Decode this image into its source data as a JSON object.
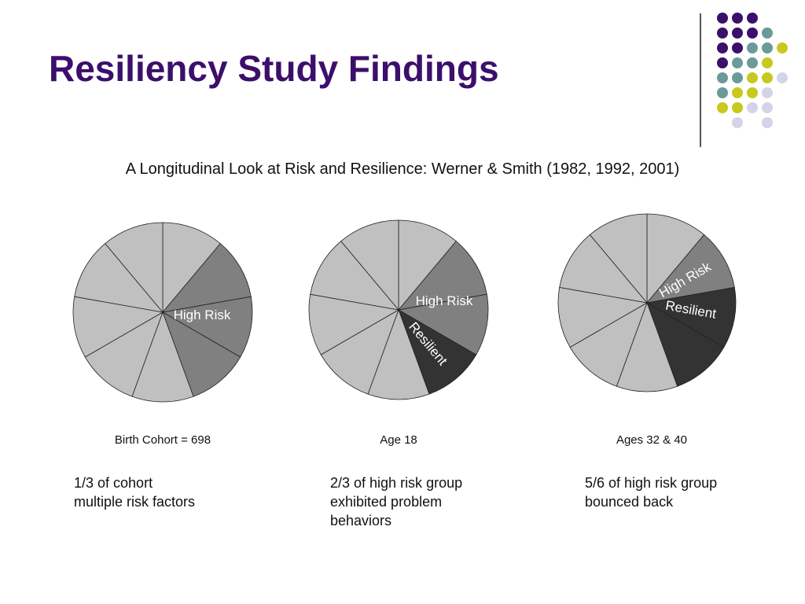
{
  "slide": {
    "title": "Resiliency Study Findings",
    "subtitle": "A Longitudinal Look at Risk and Resilience: Werner & Smith (1982, 1992, 2001)"
  },
  "decoration": {
    "dot_colors": {
      "purple": "#3b0f6b",
      "teal": "#6a9a9a",
      "olive": "#c8c81e",
      "lavender": "#d4d4e8"
    }
  },
  "chart_data": [
    {
      "type": "pie",
      "title": "",
      "caption": "Birth Cohort = 698",
      "note": "1/3 of cohort\nmultiple risk factors",
      "slice_count": 9,
      "slices": [
        {
          "label": "",
          "value": 1,
          "group": "other"
        },
        {
          "label": "High Risk",
          "value": 1,
          "group": "high_risk"
        },
        {
          "label": "",
          "value": 1,
          "group": "high_risk"
        },
        {
          "label": "",
          "value": 1,
          "group": "high_risk"
        },
        {
          "label": "",
          "value": 1,
          "group": "other"
        },
        {
          "label": "",
          "value": 1,
          "group": "other"
        },
        {
          "label": "",
          "value": 1,
          "group": "other"
        },
        {
          "label": "",
          "value": 1,
          "group": "other"
        },
        {
          "label": "",
          "value": 1,
          "group": "other"
        }
      ],
      "colors": {
        "other": "#c0c0c0",
        "high_risk": "#808080",
        "resilient": "#333333"
      }
    },
    {
      "type": "pie",
      "title": "",
      "caption": "Age 18",
      "note": "2/3 of high risk group\nexhibited problem\nbehaviors",
      "slice_count": 9,
      "slices": [
        {
          "label": "",
          "value": 1,
          "group": "other"
        },
        {
          "label": "High Risk",
          "value": 1,
          "group": "high_risk"
        },
        {
          "label": "",
          "value": 1,
          "group": "high_risk"
        },
        {
          "label": "Resilient",
          "value": 1,
          "group": "resilient"
        },
        {
          "label": "",
          "value": 1,
          "group": "other"
        },
        {
          "label": "",
          "value": 1,
          "group": "other"
        },
        {
          "label": "",
          "value": 1,
          "group": "other"
        },
        {
          "label": "",
          "value": 1,
          "group": "other"
        },
        {
          "label": "",
          "value": 1,
          "group": "other"
        }
      ],
      "colors": {
        "other": "#c0c0c0",
        "high_risk": "#808080",
        "resilient": "#333333"
      }
    },
    {
      "type": "pie",
      "title": "",
      "caption": "Ages 32 & 40",
      "note": "5/6 of high risk group\nbounced back",
      "slice_count": 9,
      "slices": [
        {
          "label": "",
          "value": 1,
          "group": "other"
        },
        {
          "label": "High Risk",
          "value": 1,
          "group": "high_risk"
        },
        {
          "label": "Resilient",
          "value": 1,
          "group": "resilient"
        },
        {
          "label": "",
          "value": 1,
          "group": "resilient"
        },
        {
          "label": "",
          "value": 1,
          "group": "other"
        },
        {
          "label": "",
          "value": 1,
          "group": "other"
        },
        {
          "label": "",
          "value": 1,
          "group": "other"
        },
        {
          "label": "",
          "value": 1,
          "group": "other"
        },
        {
          "label": "",
          "value": 1,
          "group": "other"
        }
      ],
      "colors": {
        "other": "#c0c0c0",
        "high_risk": "#808080",
        "resilient": "#333333"
      }
    }
  ]
}
